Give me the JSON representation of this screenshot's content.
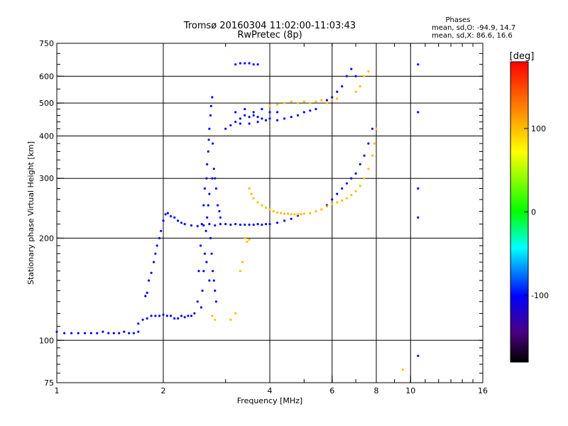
{
  "chart_data": {
    "type": "scatter",
    "title": "Tromsø 20160304 11:02:00-11:03:43",
    "subtitle": "RwPretec (8p)",
    "xlabel": "Frequency [MHz]",
    "ylabel": "Stationary phase Virtual Height [km]",
    "x_scale": "log",
    "y_scale": "log",
    "xlim": [
      1,
      16
    ],
    "ylim": [
      75,
      750
    ],
    "x_ticks": [
      1,
      2,
      4,
      6,
      8,
      10,
      16
    ],
    "x_tick_labels": [
      "1",
      "2",
      "4",
      "6",
      "8",
      "10",
      "16"
    ],
    "y_ticks": [
      75,
      100,
      200,
      300,
      400,
      500,
      600,
      750
    ],
    "y_tick_labels": [
      "75",
      "100",
      "200",
      "300",
      "400",
      "500",
      "600",
      "750"
    ],
    "x_gridlines": [
      2,
      4,
      6,
      8,
      10
    ],
    "y_gridlines": [
      100,
      200,
      300,
      400,
      500,
      600
    ],
    "grid": true,
    "legend_title": "Phases",
    "legend_lines": [
      "mean, sd,O: -94.9, 14.7",
      "mean, sd,X:  86.6, 16.6"
    ],
    "legend_placement": "top-right",
    "colorbar": {
      "unit": "[deg]",
      "min": -180,
      "max": 180,
      "ticks": [
        100,
        0,
        -100
      ],
      "tick_labels": [
        "100",
        "0",
        "-100"
      ]
    },
    "series": [
      {
        "name": "O",
        "color_phase": -100,
        "points": [
          [
            1.0,
            106
          ],
          [
            1.05,
            105
          ],
          [
            1.1,
            105
          ],
          [
            1.15,
            105
          ],
          [
            1.2,
            105
          ],
          [
            1.25,
            105
          ],
          [
            1.3,
            105
          ],
          [
            1.35,
            106
          ],
          [
            1.4,
            105
          ],
          [
            1.45,
            105
          ],
          [
            1.5,
            105
          ],
          [
            1.55,
            106
          ],
          [
            1.6,
            105
          ],
          [
            1.65,
            105
          ],
          [
            1.7,
            106
          ],
          [
            1.7,
            112
          ],
          [
            1.75,
            115
          ],
          [
            1.8,
            116
          ],
          [
            1.85,
            118
          ],
          [
            1.9,
            118
          ],
          [
            1.95,
            118
          ],
          [
            2.0,
            119
          ],
          [
            2.05,
            118
          ],
          [
            2.1,
            118
          ],
          [
            2.15,
            116
          ],
          [
            2.2,
            116
          ],
          [
            2.25,
            118
          ],
          [
            2.3,
            117
          ],
          [
            2.35,
            118
          ],
          [
            2.4,
            118
          ],
          [
            2.45,
            120
          ],
          [
            1.78,
            135
          ],
          [
            1.8,
            138
          ],
          [
            1.82,
            150
          ],
          [
            1.85,
            158
          ],
          [
            1.88,
            170
          ],
          [
            1.9,
            180
          ],
          [
            1.92,
            190
          ],
          [
            1.95,
            200
          ],
          [
            1.97,
            210
          ],
          [
            2.0,
            225
          ],
          [
            2.03,
            235
          ],
          [
            2.06,
            237
          ],
          [
            2.1,
            232
          ],
          [
            2.15,
            230
          ],
          [
            2.2,
            225
          ],
          [
            2.25,
            222
          ],
          [
            2.3,
            220
          ],
          [
            2.4,
            218
          ],
          [
            2.5,
            217
          ],
          [
            2.6,
            218
          ],
          [
            2.7,
            220
          ],
          [
            2.8,
            218
          ],
          [
            2.9,
            220
          ],
          [
            3.0,
            220
          ],
          [
            3.1,
            219
          ],
          [
            3.2,
            220
          ],
          [
            3.3,
            219
          ],
          [
            3.4,
            219
          ],
          [
            3.5,
            219
          ],
          [
            3.6,
            219
          ],
          [
            3.7,
            220
          ],
          [
            3.8,
            219
          ],
          [
            3.9,
            220
          ],
          [
            4.0,
            220
          ],
          [
            4.2,
            222
          ],
          [
            4.4,
            225
          ],
          [
            4.6,
            228
          ],
          [
            4.8,
            233
          ],
          [
            2.5,
            130
          ],
          [
            2.52,
            160
          ],
          [
            2.55,
            190
          ],
          [
            2.57,
            220
          ],
          [
            2.6,
            250
          ],
          [
            2.62,
            280
          ],
          [
            2.65,
            300
          ],
          [
            2.66,
            330
          ],
          [
            2.68,
            360
          ],
          [
            2.69,
            390
          ],
          [
            2.7,
            420
          ],
          [
            2.72,
            460
          ],
          [
            2.73,
            490
          ],
          [
            2.75,
            520
          ],
          [
            2.76,
            380
          ],
          [
            2.78,
            320
          ],
          [
            2.8,
            300
          ],
          [
            2.82,
            280
          ],
          [
            2.85,
            250
          ],
          [
            2.88,
            240
          ],
          [
            2.9,
            230
          ],
          [
            2.75,
            300
          ],
          [
            2.7,
            270
          ],
          [
            2.68,
            250
          ],
          [
            2.66,
            230
          ],
          [
            2.64,
            210
          ],
          [
            2.62,
            180
          ],
          [
            2.6,
            160
          ],
          [
            2.58,
            140
          ],
          [
            2.56,
            125
          ],
          [
            2.72,
            200
          ],
          [
            2.74,
            180
          ],
          [
            2.76,
            160
          ],
          [
            2.78,
            150
          ],
          [
            2.8,
            140
          ],
          [
            2.82,
            130
          ],
          [
            2.65,
            170
          ],
          [
            2.7,
            150
          ],
          [
            3.0,
            420
          ],
          [
            3.1,
            430
          ],
          [
            3.2,
            440
          ],
          [
            3.3,
            450
          ],
          [
            3.4,
            460
          ],
          [
            3.5,
            455
          ],
          [
            3.6,
            460
          ],
          [
            3.7,
            455
          ],
          [
            3.8,
            450
          ],
          [
            3.9,
            445
          ],
          [
            4.0,
            450
          ],
          [
            4.2,
            445
          ],
          [
            4.4,
            450
          ],
          [
            4.6,
            455
          ],
          [
            4.8,
            460
          ],
          [
            5.0,
            470
          ],
          [
            5.2,
            475
          ],
          [
            5.4,
            480
          ],
          [
            3.2,
            470
          ],
          [
            3.4,
            480
          ],
          [
            3.6,
            470
          ],
          [
            3.8,
            480
          ],
          [
            4.0,
            470
          ],
          [
            4.2,
            470
          ],
          [
            3.3,
            435
          ],
          [
            3.5,
            435
          ],
          [
            3.7,
            440
          ],
          [
            3.2,
            650
          ],
          [
            3.3,
            655
          ],
          [
            3.4,
            655
          ],
          [
            3.5,
            655
          ],
          [
            3.6,
            650
          ],
          [
            3.7,
            650
          ],
          [
            5.8,
            250
          ],
          [
            6.0,
            260
          ],
          [
            6.2,
            270
          ],
          [
            6.4,
            280
          ],
          [
            6.6,
            290
          ],
          [
            6.8,
            300
          ],
          [
            7.0,
            310
          ],
          [
            7.2,
            330
          ],
          [
            7.4,
            350
          ],
          [
            7.6,
            380
          ],
          [
            7.8,
            420
          ],
          [
            5.8,
            510
          ],
          [
            6.0,
            520
          ],
          [
            6.2,
            540
          ],
          [
            6.4,
            560
          ],
          [
            6.6,
            600
          ],
          [
            6.8,
            630
          ],
          [
            7.0,
            600
          ],
          [
            10.5,
            280
          ],
          [
            10.5,
            230
          ],
          [
            10.5,
            470
          ],
          [
            10.5,
            650
          ],
          [
            10.5,
            90
          ]
        ]
      },
      {
        "name": "X",
        "color_phase": 100,
        "points": [
          [
            3.5,
            280
          ],
          [
            3.55,
            270
          ],
          [
            3.6,
            262
          ],
          [
            3.7,
            255
          ],
          [
            3.8,
            250
          ],
          [
            3.9,
            246
          ],
          [
            4.0,
            243
          ],
          [
            4.1,
            240
          ],
          [
            4.2,
            238
          ],
          [
            4.3,
            237
          ],
          [
            4.4,
            236
          ],
          [
            4.5,
            236
          ],
          [
            4.6,
            235
          ],
          [
            4.7,
            235
          ],
          [
            4.8,
            235
          ],
          [
            4.9,
            235
          ],
          [
            5.0,
            236
          ],
          [
            5.2,
            237
          ],
          [
            5.4,
            240
          ],
          [
            5.6,
            243
          ],
          [
            5.8,
            248
          ],
          [
            6.0,
            252
          ],
          [
            6.2,
            255
          ],
          [
            6.4,
            258
          ],
          [
            6.6,
            262
          ],
          [
            6.8,
            268
          ],
          [
            7.0,
            275
          ],
          [
            7.2,
            285
          ],
          [
            7.4,
            300
          ],
          [
            7.6,
            320
          ],
          [
            7.8,
            350
          ],
          [
            7.9,
            380
          ],
          [
            8.0,
            420
          ],
          [
            3.4,
            200
          ],
          [
            3.45,
            195
          ],
          [
            3.5,
            198
          ],
          [
            3.35,
            170
          ],
          [
            3.3,
            160
          ],
          [
            3.2,
            120
          ],
          [
            3.1,
            115
          ],
          [
            4.0,
            490
          ],
          [
            4.2,
            495
          ],
          [
            4.4,
            500
          ],
          [
            4.6,
            505
          ],
          [
            4.8,
            500
          ],
          [
            5.0,
            505
          ],
          [
            5.2,
            500
          ],
          [
            5.4,
            505
          ],
          [
            5.6,
            510
          ],
          [
            5.8,
            500
          ],
          [
            6.0,
            510
          ],
          [
            6.2,
            515
          ],
          [
            7.0,
            540
          ],
          [
            7.2,
            560
          ],
          [
            7.4,
            600
          ],
          [
            7.6,
            620
          ],
          [
            9.5,
            82
          ],
          [
            2.8,
            115
          ],
          [
            2.75,
            118
          ]
        ]
      }
    ]
  }
}
